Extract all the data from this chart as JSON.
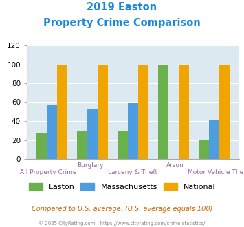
{
  "title_line1": "2019 Easton",
  "title_line2": "Property Crime Comparison",
  "categories": [
    "All Property Crime",
    "Burglary",
    "Larceny & Theft",
    "Arson",
    "Motor Vehicle Theft"
  ],
  "easton_values": [
    27,
    29,
    29,
    100,
    20
  ],
  "massachusetts_values": [
    57,
    53,
    59,
    0,
    41
  ],
  "national_values": [
    100,
    100,
    100,
    100,
    100
  ],
  "easton_color": "#6ab04c",
  "massachusetts_color": "#4d9de0",
  "national_color": "#f0a500",
  "bg_color": "#dce9f0",
  "ylim": [
    0,
    120
  ],
  "yticks": [
    0,
    20,
    40,
    60,
    80,
    100,
    120
  ],
  "footnote": "Compared to U.S. average. (U.S. average equals 100)",
  "copyright": "© 2025 CityRating.com - https://www.cityrating.com/crime-statistics/",
  "title_color": "#1a88dd",
  "xlabel_color": "#9966aa",
  "legend_fontsize": 8.0,
  "footnote_color": "#cc6600",
  "copyright_color": "#888888"
}
